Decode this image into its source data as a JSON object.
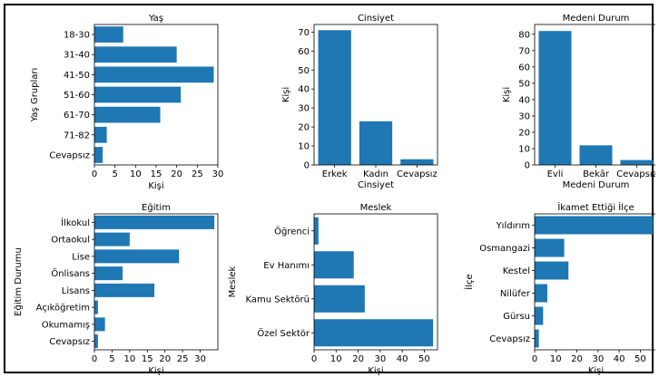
{
  "colors": {
    "bar": "#1f77b4",
    "axis": "#000000",
    "frame": "#000000"
  },
  "chart_data": [
    {
      "id": "yas",
      "type": "hbar",
      "title": "Yaş",
      "xlabel": "Kişi",
      "ylabel": "Yaş Grupları",
      "categories": [
        "18-30",
        "31-40",
        "41-50",
        "51-60",
        "61-70",
        "71-82",
        "Cevapsız"
      ],
      "values": [
        7,
        20,
        29,
        21,
        16,
        3,
        2
      ],
      "xlim": [
        0,
        30
      ],
      "xticks": [
        0,
        5,
        10,
        15,
        20,
        25,
        30
      ]
    },
    {
      "id": "cinsiyet",
      "type": "bar",
      "title": "Cinsiyet",
      "xlabel": "Cinsiyet",
      "ylabel": "Kişi",
      "categories": [
        "Erkek",
        "Kadın",
        "Cevapsız"
      ],
      "values": [
        71,
        23,
        3
      ],
      "ylim": [
        0,
        74
      ],
      "yticks": [
        0,
        10,
        20,
        30,
        40,
        50,
        60,
        70
      ]
    },
    {
      "id": "medeni",
      "type": "bar",
      "title": "Medeni Durum",
      "xlabel": "Medeni Durum",
      "ylabel": "Kişi",
      "categories": [
        "Evli",
        "Bekâr",
        "Cevapsız"
      ],
      "values": [
        82,
        12,
        3
      ],
      "ylim": [
        0,
        86
      ],
      "yticks": [
        0,
        10,
        20,
        30,
        40,
        50,
        60,
        70,
        80
      ]
    },
    {
      "id": "egitim",
      "type": "hbar",
      "title": "Eğitim",
      "xlabel": "Kişi",
      "ylabel": "Eğitim Durumu",
      "categories": [
        "İlkokul",
        "Ortaokul",
        "Lise",
        "Önlisans",
        "Lisans",
        "Açıköğretim",
        "Okumamış",
        "Cevapsız"
      ],
      "values": [
        34,
        10,
        24,
        8,
        17,
        1,
        3,
        1
      ],
      "xlim": [
        0,
        35
      ],
      "xticks": [
        0,
        5,
        10,
        15,
        20,
        25,
        30
      ]
    },
    {
      "id": "meslek",
      "type": "hbar",
      "title": "Meslek",
      "xlabel": "Kişi",
      "ylabel": "Meslek",
      "categories": [
        "Öğrenci",
        "Ev Hanımı",
        "Kamu Sektörü",
        "Özel Sektör"
      ],
      "values": [
        2,
        18,
        23,
        54
      ],
      "xlim": [
        0,
        56
      ],
      "xticks": [
        0,
        10,
        20,
        30,
        40,
        50
      ]
    },
    {
      "id": "ilce",
      "type": "hbar",
      "title": "İkamet Ettiği İlçe",
      "xlabel": "Kişi",
      "ylabel": "İlçe",
      "categories": [
        "Yıldırım",
        "Osmangazi",
        "Kestel",
        "Nilüfer",
        "Gürsu",
        "Cevapsız"
      ],
      "values": [
        56,
        14,
        16,
        6,
        4,
        2
      ],
      "xlim": [
        0,
        58
      ],
      "xticks": [
        0,
        10,
        20,
        30,
        40,
        50
      ]
    }
  ]
}
